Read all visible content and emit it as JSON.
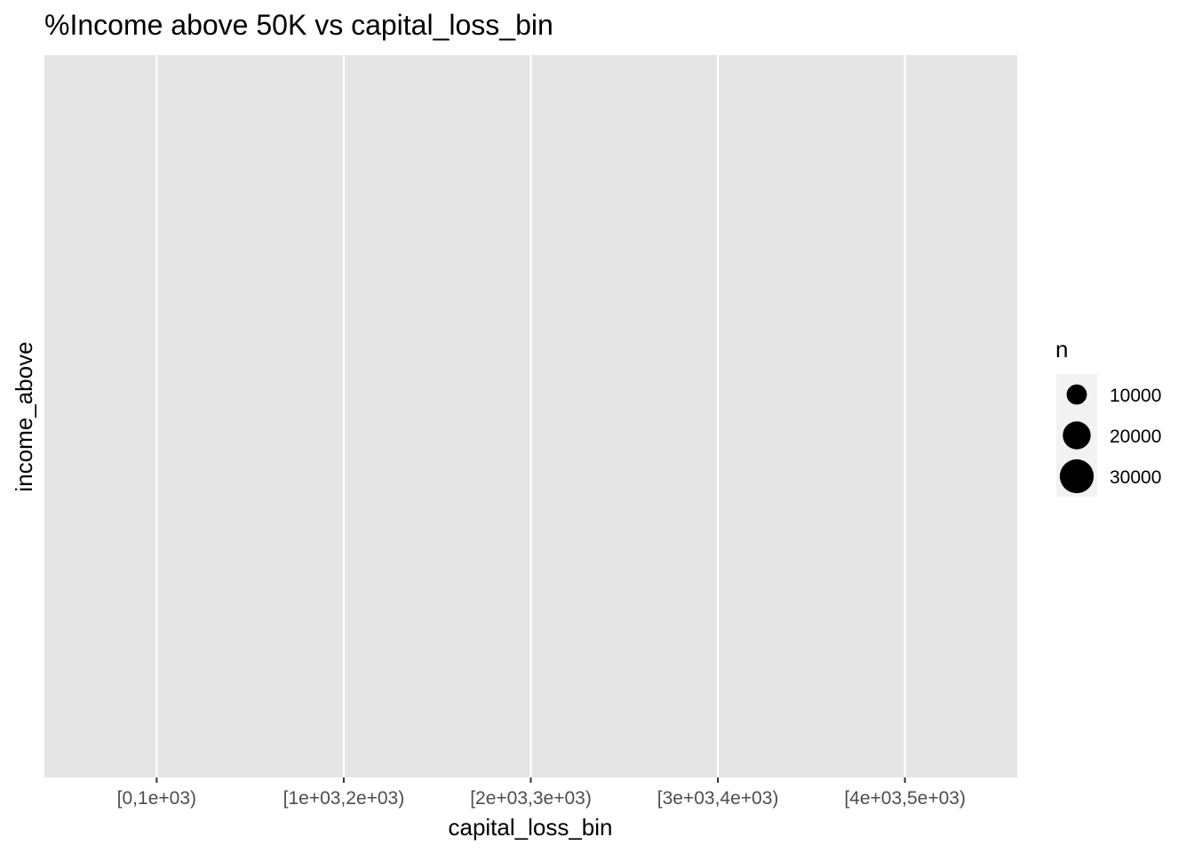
{
  "chart_data": {
    "type": "scatter",
    "title": "%Income above 50K vs capital_loss_bin",
    "xlabel": "capital_loss_bin",
    "ylabel": "income_above",
    "categories": [
      "[0,1e+03)",
      "[1e+03,2e+03)",
      "[2e+03,3e+03)",
      "[3e+03,4e+03)",
      "[4e+03,5e+03)"
    ],
    "series": [],
    "grid": true,
    "background": "#e5e5e5",
    "grid_color": "#ffffff",
    "legend": {
      "position": "right",
      "title": "n",
      "entries": [
        {
          "label": "10000",
          "value": 10000
        },
        {
          "label": "20000",
          "value": 20000
        },
        {
          "label": "30000",
          "value": 30000
        }
      ]
    }
  }
}
